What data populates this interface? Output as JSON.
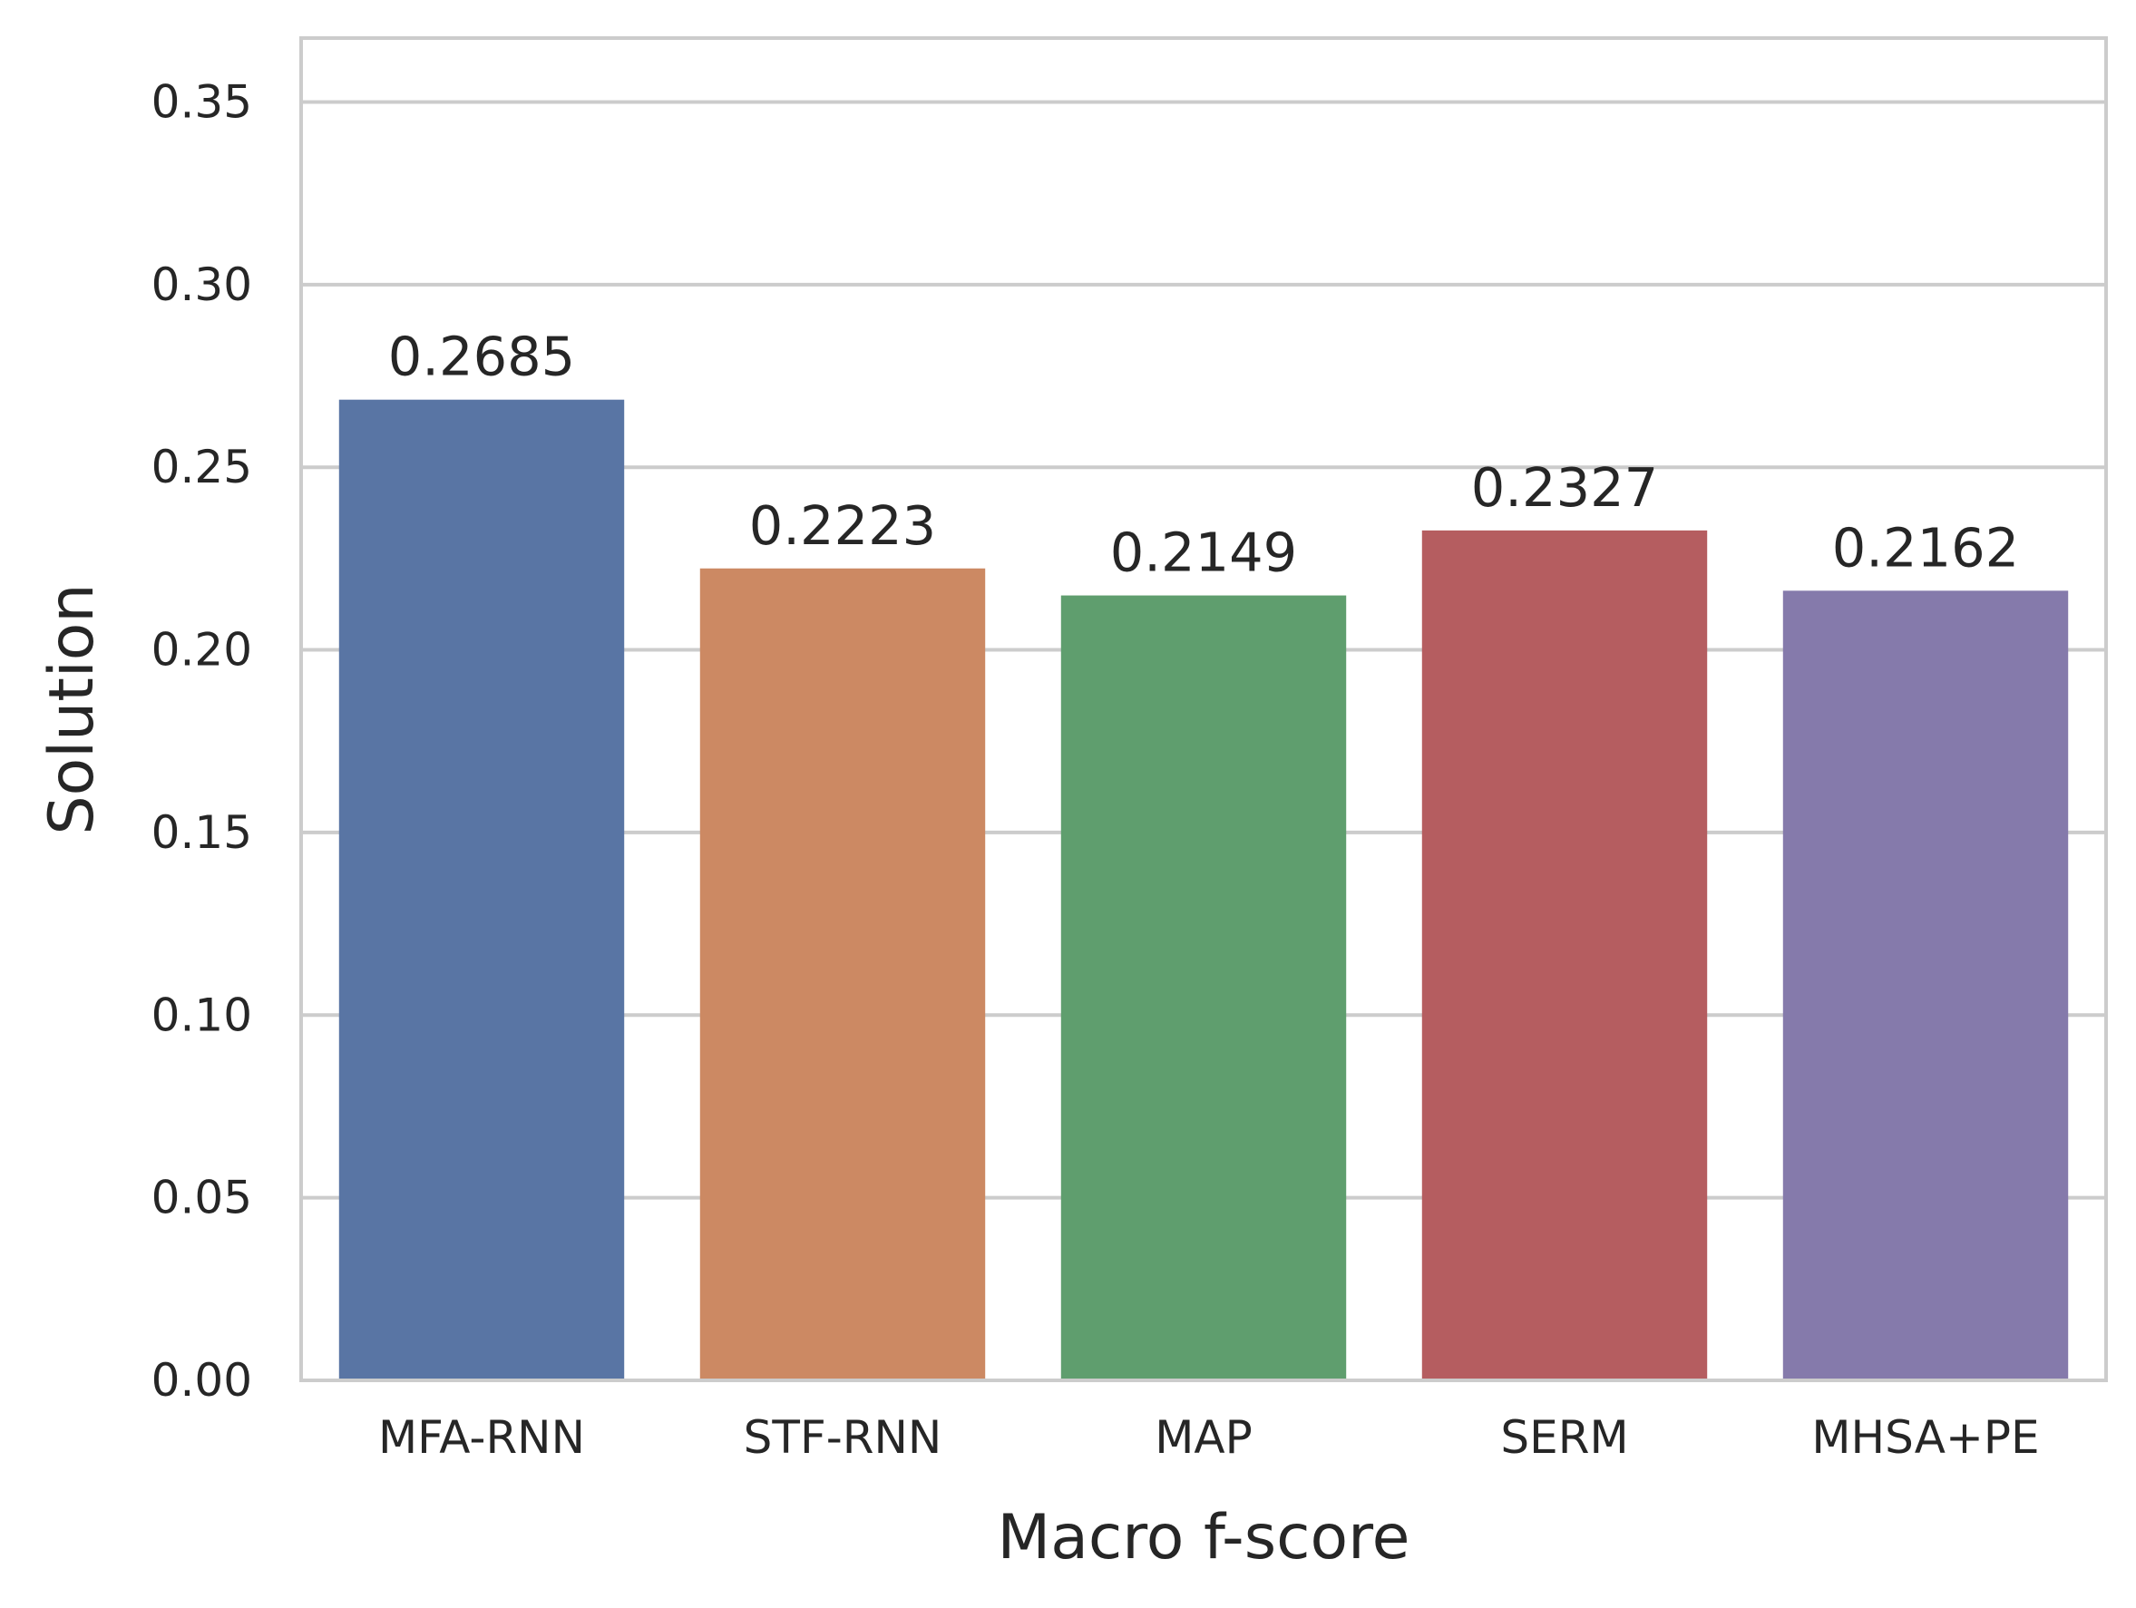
{
  "chart_data": {
    "type": "bar",
    "title": "",
    "xlabel": "Macro f-score",
    "ylabel": "Solution",
    "categories": [
      "MFA-RNN",
      "STF-RNN",
      "MAP",
      "SERM",
      "MHSA+PE"
    ],
    "values": [
      0.2685,
      0.2223,
      0.2149,
      0.2327,
      0.2162
    ],
    "value_labels": [
      "0.2685",
      "0.2223",
      "0.2149",
      "0.2327",
      "0.2162"
    ],
    "colors": [
      "#5975a4",
      "#cc8963",
      "#5f9e6e",
      "#b55d60",
      "#857aab"
    ],
    "ylim": [
      0,
      0.3675
    ],
    "yticks": [
      0.0,
      0.05,
      0.1,
      0.15,
      0.2,
      0.25,
      0.3,
      0.35
    ],
    "ytick_labels": [
      "0.00",
      "0.05",
      "0.10",
      "0.15",
      "0.20",
      "0.25",
      "0.30",
      "0.35"
    ],
    "grid": true,
    "legend": false
  }
}
